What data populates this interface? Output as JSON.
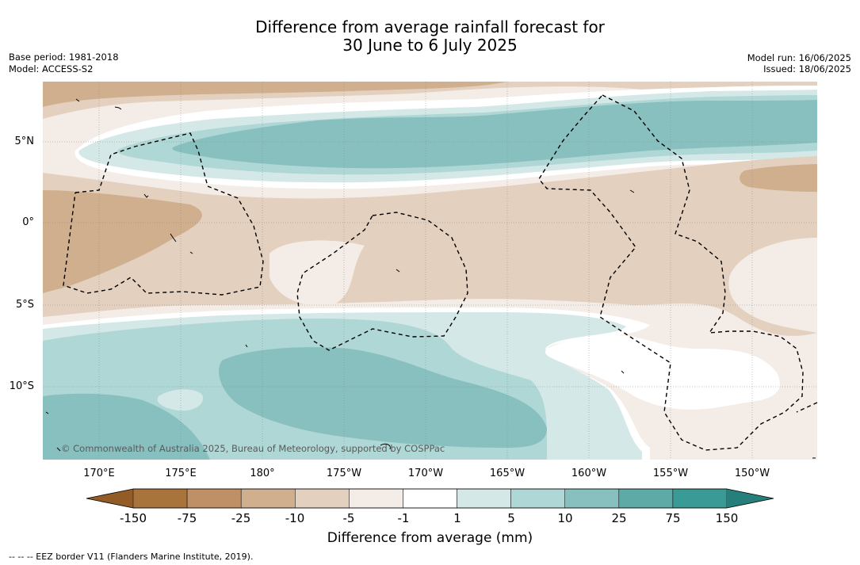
{
  "title_line1": "Difference from average rainfall forecast for",
  "title_line2": "30 June to 6 July 2025",
  "base_period": "Base period: 1981-2018",
  "model": "Model: ACCESS-S2",
  "model_run": "Model run: 16/06/2025",
  "issued": "Issued: 18/06/2025",
  "lat_labels": [
    "5°N",
    "0°",
    "5°S",
    "10°S"
  ],
  "lon_labels": [
    "170°E",
    "175°E",
    "180°",
    "175°W",
    "170°W",
    "165°W",
    "160°W",
    "155°W",
    "150°W"
  ],
  "copyright": "© Commonwealth of Australia 2025, Bureau of Meteorology, supported by COSPPac",
  "colorbar": {
    "ticks": [
      "-150",
      "-75",
      "-25",
      "-10",
      "-5",
      "-1",
      "1",
      "5",
      "10",
      "25",
      "75",
      "150"
    ],
    "colors": [
      "#a8743c",
      "#bf9065",
      "#cfaf8e",
      "#e3d0bf",
      "#f4ece6",
      "#ffffff",
      "#d4e9e7",
      "#afd7d5",
      "#87c0bf",
      "#5eaaa7",
      "#3a9a96"
    ],
    "under_color": "#935c26",
    "over_color": "#267f7b",
    "label": "Difference from average (mm)"
  },
  "footnote": "--  --  -- EEZ border V11 (Flanders Marine Institute, 2019)."
}
